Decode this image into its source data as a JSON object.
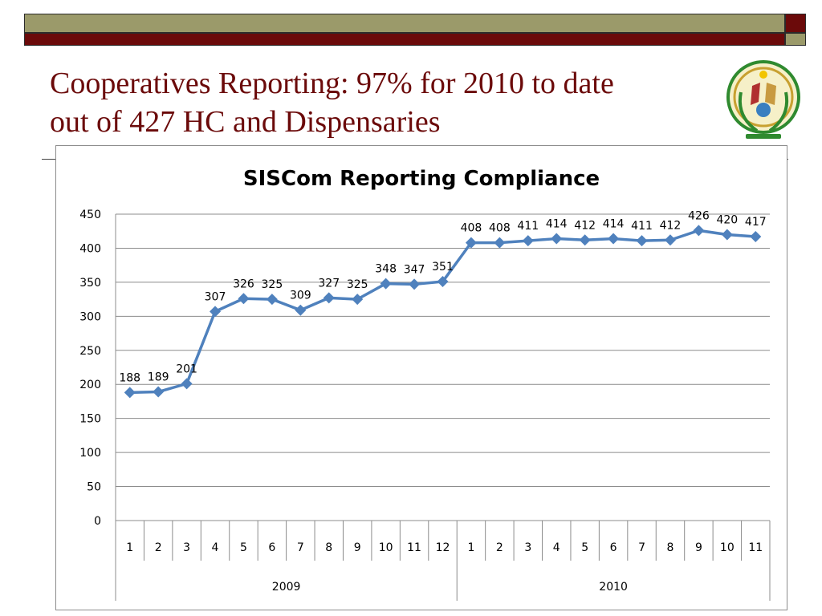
{
  "slide": {
    "title_line1": "Cooperatives Reporting: 97% for 2010 to date",
    "title_line2": "out of 427 HC and Dispensaries"
  },
  "colors": {
    "band_olive": "#9b9a6a",
    "band_maroon": "#6b0a0a",
    "title": "#6b0a0a",
    "series_line": "#4f81bd"
  },
  "chart_data": {
    "type": "line",
    "title": "SISCom Reporting Compliance",
    "xlabel": "",
    "ylabel": "",
    "ylim": [
      0,
      450
    ],
    "yticks": [
      0,
      50,
      100,
      150,
      200,
      250,
      300,
      350,
      400,
      450
    ],
    "grid": true,
    "legend": "none",
    "categories": [
      "1",
      "2",
      "3",
      "4",
      "5",
      "6",
      "7",
      "8",
      "9",
      "10",
      "11",
      "12",
      "1",
      "2",
      "3",
      "4",
      "5",
      "6",
      "7",
      "8",
      "9",
      "10",
      "11"
    ],
    "groups": [
      {
        "label": "2009",
        "count": 12
      },
      {
        "label": "2010",
        "count": 11
      }
    ],
    "series": [
      {
        "values": [
          188,
          189,
          201,
          307,
          326,
          325,
          309,
          327,
          325,
          348,
          347,
          351,
          408,
          408,
          411,
          414,
          412,
          414,
          411,
          412,
          426,
          420,
          417
        ]
      }
    ]
  }
}
